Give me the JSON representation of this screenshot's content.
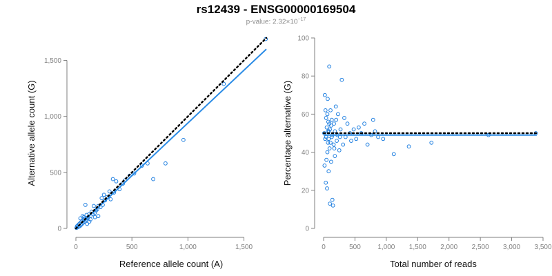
{
  "header": {
    "title": "rs12439 - ENSG00000169504",
    "pvalue_prefix": "p-value: 2.32×10",
    "pvalue_exponent": "−17"
  },
  "colors": {
    "points": "#1f7fe0",
    "fit": "#2b8ce6",
    "reference": "#000000"
  },
  "chart_data": [
    {
      "type": "scatter",
      "xlabel": "Reference allele count (A)",
      "ylabel": "Alternative allele count (G)",
      "xlim": [
        0,
        1700
      ],
      "ylim": [
        0,
        1700
      ],
      "x_ticks": [
        0,
        500,
        1000,
        1500
      ],
      "x_tick_labels": [
        "0",
        "500",
        "1,000",
        "1,500"
      ],
      "y_ticks": [
        0,
        500,
        1000,
        1500
      ],
      "y_tick_labels": [
        "0",
        "500",
        "1,000",
        "1,500"
      ],
      "reference_line": {
        "style": "dotted",
        "x": [
          0,
          1700
        ],
        "y": [
          0,
          1700
        ]
      },
      "fit_line": {
        "style": "solid",
        "x": [
          0,
          1700
        ],
        "y": [
          0,
          1600
        ]
      },
      "points": [
        {
          "x": 1695,
          "y": 1690
        },
        {
          "x": 1320,
          "y": 1290
        },
        {
          "x": 960,
          "y": 790
        },
        {
          "x": 800,
          "y": 580
        },
        {
          "x": 690,
          "y": 440
        },
        {
          "x": 640,
          "y": 580
        },
        {
          "x": 590,
          "y": 560
        },
        {
          "x": 520,
          "y": 490
        },
        {
          "x": 480,
          "y": 470
        },
        {
          "x": 440,
          "y": 430
        },
        {
          "x": 420,
          "y": 400
        },
        {
          "x": 390,
          "y": 350
        },
        {
          "x": 360,
          "y": 420
        },
        {
          "x": 340,
          "y": 320
        },
        {
          "x": 330,
          "y": 440
        },
        {
          "x": 310,
          "y": 260
        },
        {
          "x": 300,
          "y": 330
        },
        {
          "x": 280,
          "y": 280
        },
        {
          "x": 260,
          "y": 250
        },
        {
          "x": 240,
          "y": 210
        },
        {
          "x": 230,
          "y": 270
        },
        {
          "x": 220,
          "y": 190
        },
        {
          "x": 200,
          "y": 200
        },
        {
          "x": 190,
          "y": 170
        },
        {
          "x": 180,
          "y": 160
        },
        {
          "x": 170,
          "y": 140
        },
        {
          "x": 160,
          "y": 200
        },
        {
          "x": 150,
          "y": 130
        },
        {
          "x": 140,
          "y": 150
        },
        {
          "x": 130,
          "y": 110
        },
        {
          "x": 120,
          "y": 130
        },
        {
          "x": 110,
          "y": 100
        },
        {
          "x": 100,
          "y": 90
        },
        {
          "x": 95,
          "y": 120
        },
        {
          "x": 90,
          "y": 70
        },
        {
          "x": 85,
          "y": 210
        },
        {
          "x": 80,
          "y": 60
        },
        {
          "x": 75,
          "y": 80
        },
        {
          "x": 70,
          "y": 100
        },
        {
          "x": 65,
          "y": 50
        },
        {
          "x": 60,
          "y": 70
        },
        {
          "x": 55,
          "y": 40
        },
        {
          "x": 50,
          "y": 60
        },
        {
          "x": 45,
          "y": 30
        },
        {
          "x": 40,
          "y": 50
        },
        {
          "x": 35,
          "y": 20
        },
        {
          "x": 30,
          "y": 40
        },
        {
          "x": 25,
          "y": 15
        },
        {
          "x": 20,
          "y": 30
        },
        {
          "x": 15,
          "y": 10
        },
        {
          "x": 10,
          "y": 20
        },
        {
          "x": 5,
          "y": 5
        },
        {
          "x": 120,
          "y": 60
        },
        {
          "x": 60,
          "y": 110
        },
        {
          "x": 200,
          "y": 110
        },
        {
          "x": 250,
          "y": 300
        },
        {
          "x": 100,
          "y": 40
        },
        {
          "x": 40,
          "y": 90
        },
        {
          "x": 170,
          "y": 100
        },
        {
          "x": 130,
          "y": 80
        }
      ]
    },
    {
      "type": "scatter",
      "xlabel": "Total number of reads",
      "ylabel": "Percentage alternative (G)",
      "xlim": [
        0,
        3500
      ],
      "ylim": [
        0,
        100
      ],
      "x_ticks": [
        0,
        500,
        1000,
        1500,
        2000,
        2500,
        3000,
        3500
      ],
      "x_tick_labels": [
        "0",
        "500",
        "1,000",
        "1,500",
        "2,000",
        "2,500",
        "3,000",
        "3,500"
      ],
      "y_ticks": [
        0,
        20,
        40,
        60,
        80,
        100
      ],
      "y_tick_labels": [
        "0",
        "20",
        "40",
        "60",
        "80",
        "100"
      ],
      "reference_line": {
        "style": "dotted",
        "x": [
          0,
          3400
        ],
        "y": [
          50,
          50
        ]
      },
      "fit_line": {
        "style": "solid",
        "x": [
          0,
          3400
        ],
        "y": [
          49,
          49
        ]
      },
      "points": [
        {
          "x": 3385,
          "y": 50
        },
        {
          "x": 2630,
          "y": 49
        },
        {
          "x": 1720,
          "y": 45
        },
        {
          "x": 1360,
          "y": 43
        },
        {
          "x": 1120,
          "y": 39
        },
        {
          "x": 950,
          "y": 47
        },
        {
          "x": 870,
          "y": 48
        },
        {
          "x": 820,
          "y": 51
        },
        {
          "x": 790,
          "y": 57
        },
        {
          "x": 760,
          "y": 49
        },
        {
          "x": 700,
          "y": 44
        },
        {
          "x": 650,
          "y": 55
        },
        {
          "x": 600,
          "y": 50
        },
        {
          "x": 560,
          "y": 53
        },
        {
          "x": 520,
          "y": 47
        },
        {
          "x": 480,
          "y": 52
        },
        {
          "x": 440,
          "y": 46
        },
        {
          "x": 420,
          "y": 50
        },
        {
          "x": 380,
          "y": 55
        },
        {
          "x": 350,
          "y": 48
        },
        {
          "x": 330,
          "y": 58
        },
        {
          "x": 310,
          "y": 44
        },
        {
          "x": 290,
          "y": 78
        },
        {
          "x": 270,
          "y": 52
        },
        {
          "x": 250,
          "y": 41
        },
        {
          "x": 230,
          "y": 60
        },
        {
          "x": 210,
          "y": 46
        },
        {
          "x": 195,
          "y": 64
        },
        {
          "x": 180,
          "y": 38
        },
        {
          "x": 165,
          "y": 55
        },
        {
          "x": 150,
          "y": 12
        },
        {
          "x": 140,
          "y": 15
        },
        {
          "x": 130,
          "y": 48
        },
        {
          "x": 120,
          "y": 35
        },
        {
          "x": 110,
          "y": 62
        },
        {
          "x": 100,
          "y": 13
        },
        {
          "x": 95,
          "y": 42
        },
        {
          "x": 90,
          "y": 85
        },
        {
          "x": 85,
          "y": 51
        },
        {
          "x": 80,
          "y": 30
        },
        {
          "x": 75,
          "y": 56
        },
        {
          "x": 70,
          "y": 45
        },
        {
          "x": 65,
          "y": 68
        },
        {
          "x": 60,
          "y": 40
        },
        {
          "x": 55,
          "y": 21
        },
        {
          "x": 50,
          "y": 53
        },
        {
          "x": 45,
          "y": 36
        },
        {
          "x": 40,
          "y": 58
        },
        {
          "x": 35,
          "y": 24
        },
        {
          "x": 30,
          "y": 62
        },
        {
          "x": 25,
          "y": 47
        },
        {
          "x": 20,
          "y": 70
        },
        {
          "x": 15,
          "y": 33
        },
        {
          "x": 10,
          "y": 50
        },
        {
          "x": 180,
          "y": 51
        },
        {
          "x": 220,
          "y": 49
        },
        {
          "x": 260,
          "y": 48
        },
        {
          "x": 120,
          "y": 54
        },
        {
          "x": 160,
          "y": 44
        },
        {
          "x": 200,
          "y": 57
        },
        {
          "x": 60,
          "y": 60
        },
        {
          "x": 80,
          "y": 47
        },
        {
          "x": 100,
          "y": 52
        },
        {
          "x": 140,
          "y": 49
        },
        {
          "x": 110,
          "y": 45
        },
        {
          "x": 90,
          "y": 55
        },
        {
          "x": 40,
          "y": 48
        },
        {
          "x": 70,
          "y": 51
        },
        {
          "x": 130,
          "y": 57
        },
        {
          "x": 170,
          "y": 42
        }
      ]
    }
  ]
}
